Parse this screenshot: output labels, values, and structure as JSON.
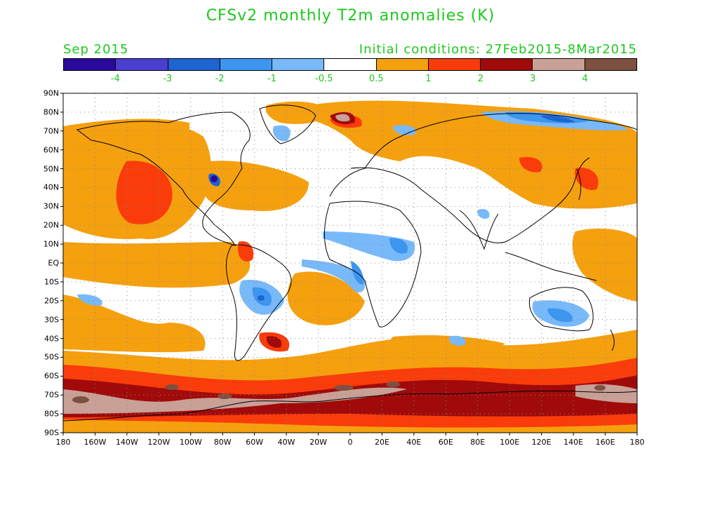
{
  "title": "CFSv2 monthly T2m anomalies (K)",
  "month": "Sep 2015",
  "initial_conditions": "Initial conditions: 27Feb2015-8Mar2015",
  "colors": {
    "text": "#1ec81e",
    "neg4": "#2a0a9c",
    "neg3": "#4b3fd2",
    "neg2": "#1e64d2",
    "neg1": "#3c96f0",
    "neg05": "#78b9fa",
    "zero": "#ffffff",
    "pos05": "#f5a00f",
    "pos1": "#fa3c0a",
    "pos2": "#a00a0a",
    "pos3": "#c8a096",
    "pos4": "#7d5040"
  },
  "colorbar_colors": [
    "#2a0a9c",
    "#4b3fd2",
    "#1e64d2",
    "#3c96f0",
    "#78b9fa",
    "#ffffff",
    "#f5a00f",
    "#fa3c0a",
    "#a00a0a",
    "#c8a096",
    "#7d5040"
  ],
  "colorbar_labels": [
    "-4",
    "-3",
    "-2",
    "-1",
    "-0.5",
    "0.5",
    "1",
    "2",
    "3",
    "4"
  ],
  "lat_labels": [
    "90N",
    "80N",
    "70N",
    "60N",
    "50N",
    "40N",
    "30N",
    "20N",
    "10N",
    "EQ",
    "10S",
    "20S",
    "30S",
    "40S",
    "50S",
    "60S",
    "70S",
    "80S",
    "90S"
  ],
  "lon_labels": [
    "180",
    "160W",
    "140W",
    "120W",
    "100W",
    "80W",
    "60W",
    "40W",
    "20W",
    "0",
    "20E",
    "40E",
    "60E",
    "80E",
    "100E",
    "120E",
    "140E",
    "160E",
    "180"
  ]
}
